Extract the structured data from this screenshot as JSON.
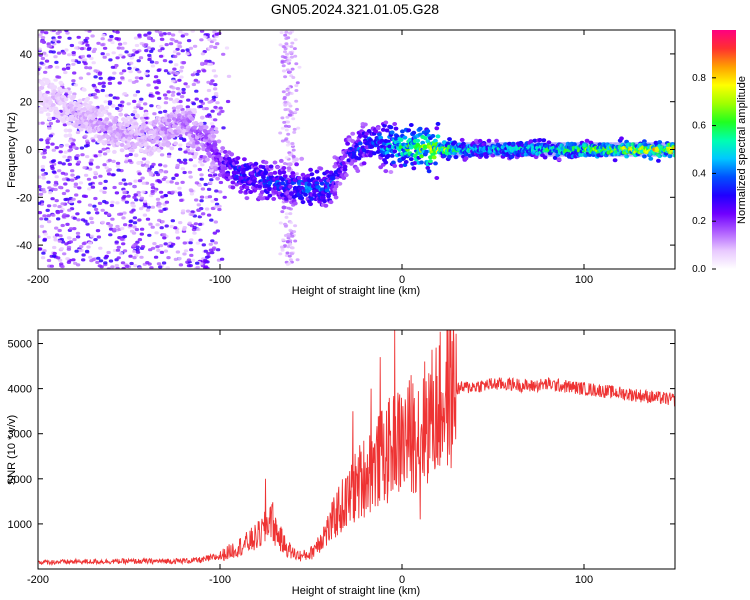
{
  "figure_title": "GN05.2024.321.01.05.G28",
  "chart_data": [
    {
      "id": "spectrogram",
      "type": "heatmap",
      "title": "",
      "xlabel": "Height of straight line (km)",
      "ylabel": "Frequency (Hz)",
      "xlim": [
        -200,
        150
      ],
      "ylim": [
        -50,
        50
      ],
      "xticks": [
        -200,
        -100,
        0,
        100
      ],
      "yticks": [
        -40,
        -20,
        0,
        20,
        40
      ],
      "grid": false,
      "colorbar": {
        "label": "Normalized spectral amplitude",
        "range": [
          0,
          1
        ],
        "ticks": [
          0.0,
          0.2,
          0.4,
          0.6,
          0.8
        ],
        "colormap": [
          "#ffffff",
          "#e8c8ff",
          "#b060ff",
          "#7000ff",
          "#2000ff",
          "#0050ff",
          "#00c8ff",
          "#00ffb0",
          "#20ff20",
          "#a0ff00",
          "#ffff00",
          "#ffa000",
          "#ff3030",
          "#ff0080"
        ]
      },
      "ridge": {
        "x": [
          -200,
          -180,
          -160,
          -140,
          -120,
          -110,
          -100,
          -90,
          -80,
          -70,
          -60,
          -50,
          -40,
          -35,
          -30,
          -25,
          -20,
          -10,
          0,
          10,
          20,
          40,
          60,
          80,
          100,
          120,
          150
        ],
        "frequency": [
          25,
          15,
          8,
          5,
          12,
          5,
          -5,
          -10,
          -12,
          -14,
          -15,
          -16,
          -16,
          -10,
          -2,
          -1,
          3,
          2,
          1,
          0.5,
          0,
          0,
          0,
          0,
          0,
          0,
          0
        ],
        "amplitude": [
          0.08,
          0.1,
          0.12,
          0.12,
          0.15,
          0.18,
          0.25,
          0.35,
          0.35,
          0.35,
          0.35,
          0.4,
          0.38,
          0.3,
          0.3,
          0.35,
          0.35,
          0.45,
          0.55,
          0.65,
          0.7,
          0.45,
          0.5,
          0.55,
          0.6,
          0.7,
          0.75
        ]
      }
    },
    {
      "id": "snr",
      "type": "line",
      "title": "",
      "xlabel": "Height of straight line (km)",
      "ylabel": "SNR (10 * v/v)",
      "xlim": [
        -200,
        150
      ],
      "ylim": [
        0,
        5300
      ],
      "xticks": [
        -200,
        -100,
        0,
        100
      ],
      "yticks": [
        1000,
        2000,
        3000,
        4000,
        5000
      ],
      "grid": false,
      "series": [
        {
          "color": "#ee3333",
          "x": [
            -200,
            -180,
            -160,
            -140,
            -120,
            -110,
            -100,
            -95,
            -90,
            -85,
            -80,
            -75,
            -72,
            -70,
            -65,
            -60,
            -55,
            -50,
            -45,
            -40,
            -35,
            -30,
            -25,
            -20,
            -15,
            -10,
            -5,
            0,
            5,
            10,
            15,
            20,
            25,
            30,
            40,
            50,
            60,
            70,
            80,
            90,
            100,
            110,
            120,
            130,
            140,
            150
          ],
          "y": [
            150,
            160,
            170,
            170,
            180,
            200,
            280,
            380,
            480,
            580,
            700,
            900,
            1200,
            900,
            550,
            350,
            280,
            350,
            650,
            900,
            1300,
            1500,
            1850,
            2100,
            2300,
            2500,
            2700,
            2850,
            2950,
            3150,
            3350,
            3600,
            3850,
            4000,
            4050,
            4100,
            4100,
            4050,
            4100,
            4050,
            4000,
            3950,
            3900,
            3850,
            3800,
            3750
          ],
          "annotations": [
            {
              "x": -75,
              "y": 2000
            },
            {
              "x": -27,
              "y": 3500
            },
            {
              "x": -17,
              "y": 4000
            },
            {
              "x": -12,
              "y": 4700
            },
            {
              "x": -4,
              "y": 5300
            },
            {
              "x": 5,
              "y": 4300
            },
            {
              "x": 10,
              "y": 1100
            }
          ]
        }
      ]
    }
  ]
}
